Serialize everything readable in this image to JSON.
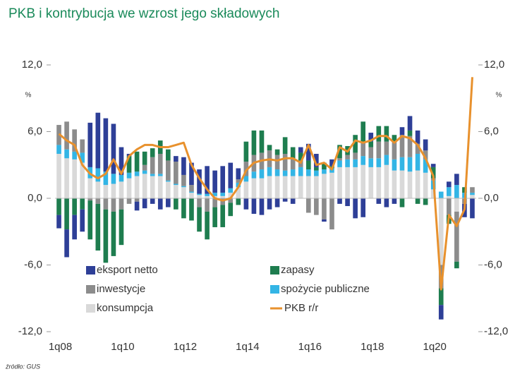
{
  "chart_data": {
    "type": "bar",
    "stacked": true,
    "title": "PKB i kontrybucja we wzrost jego składowych",
    "source": "źródło: GUS",
    "y_unit": "%",
    "categories": [
      "1q08",
      null,
      null,
      null,
      null,
      null,
      null,
      null,
      "1q10",
      null,
      null,
      null,
      null,
      null,
      null,
      null,
      "1q12",
      null,
      null,
      null,
      null,
      null,
      null,
      null,
      "1q14",
      null,
      null,
      null,
      null,
      null,
      null,
      null,
      "1q16",
      null,
      null,
      null,
      null,
      null,
      null,
      null,
      "1q18",
      null,
      null,
      null,
      null,
      null,
      null,
      null,
      "1q20",
      null,
      null,
      null,
      null,
      null
    ],
    "series": [
      {
        "name": "konsumpcja",
        "color": "#d9d9d9",
        "values": [
          4.0,
          3.6,
          3.5,
          3.2,
          1.8,
          1.5,
          1.2,
          1.3,
          1.5,
          1.8,
          2.0,
          2.2,
          2.0,
          2.0,
          1.5,
          1.2,
          1.0,
          0.5,
          0.3,
          0.2,
          0.2,
          0.2,
          0.5,
          1.0,
          1.5,
          1.8,
          1.8,
          2.0,
          2.0,
          2.0,
          2.0,
          2.0,
          2.0,
          2.0,
          2.2,
          2.3,
          2.8,
          2.8,
          2.8,
          3.0,
          2.8,
          2.8,
          3.0,
          2.5,
          2.5,
          2.4,
          2.5,
          2.3,
          0.8,
          -6.0,
          0.2,
          -1.2,
          0.0,
          0.3
        ]
      },
      {
        "name": "spożycie publiczne",
        "color": "#33b5e5",
        "values": [
          0.8,
          0.8,
          0.7,
          0.9,
          1.0,
          1.2,
          1.2,
          0.9,
          0.6,
          0.5,
          0.4,
          0.3,
          0.2,
          0.2,
          0.1,
          0.1,
          0.1,
          0.1,
          0.1,
          0.2,
          0.3,
          0.3,
          0.4,
          0.4,
          0.5,
          0.6,
          0.8,
          0.8,
          0.6,
          0.5,
          0.6,
          0.8,
          0.6,
          0.5,
          0.4,
          0.4,
          0.6,
          0.7,
          0.7,
          0.8,
          0.8,
          0.8,
          0.9,
          1.0,
          1.2,
          1.3,
          1.5,
          1.2,
          0.8,
          0.6,
          0.8,
          1.2,
          0.5,
          0.2
        ]
      },
      {
        "name": "inwestycje",
        "color": "#8c8c8c",
        "values": [
          1.8,
          2.5,
          2.0,
          1.2,
          -0.2,
          -0.5,
          -1.0,
          -1.2,
          -1.0,
          -0.5,
          -0.3,
          0.5,
          1.5,
          1.8,
          1.8,
          2.0,
          1.0,
          0.6,
          -0.8,
          -1.2,
          -0.8,
          -0.6,
          -0.4,
          0.3,
          1.3,
          1.5,
          1.5,
          1.5,
          1.3,
          1.5,
          1.0,
          0.6,
          -1.3,
          -1.5,
          -1.9,
          -2.8,
          0.2,
          0.4,
          0.6,
          1.3,
          1.0,
          1.5,
          1.2,
          1.6,
          2.0,
          1.9,
          0.9,
          0.8,
          0.2,
          -2.1,
          -1.5,
          -4.5,
          -0.5,
          0.5
        ]
      },
      {
        "name": "zapasy",
        "color": "#1e7d4f",
        "values": [
          -1.5,
          -2.8,
          -1.5,
          -1.0,
          -3.5,
          -4.2,
          -4.8,
          -4.0,
          -3.2,
          1.5,
          1.8,
          1.2,
          0.8,
          1.2,
          1.0,
          -1.0,
          -1.8,
          -2.0,
          -2.2,
          -2.5,
          -1.8,
          -2.0,
          -1.2,
          -0.6,
          1.8,
          2.2,
          2.0,
          0.5,
          0.5,
          1.5,
          1.0,
          0.7,
          0.8,
          0.3,
          0.6,
          0.2,
          1.2,
          0.8,
          1.6,
          1.8,
          0.5,
          1.4,
          1.4,
          0.6,
          -0.8,
          0.5,
          -0.5,
          -0.6,
          1.0,
          -1.5,
          -0.8,
          -0.6,
          0.5,
          0.0
        ]
      },
      {
        "name": "eksport netto",
        "color": "#2e3f97",
        "values": [
          -1.2,
          -2.5,
          -2.2,
          -2.0,
          4.0,
          5.0,
          4.8,
          4.5,
          2.5,
          0.2,
          -0.8,
          -0.9,
          -0.5,
          -1.0,
          -0.8,
          0.5,
          1.6,
          2.0,
          2.2,
          2.5,
          2.0,
          2.4,
          2.3,
          1.0,
          -1.0,
          -1.4,
          -1.5,
          -1.0,
          -0.8,
          -0.3,
          -0.5,
          0.5,
          1.5,
          1.2,
          -0.2,
          0.6,
          -0.5,
          -0.7,
          -1.8,
          -1.7,
          0.8,
          -0.5,
          -0.8,
          -0.5,
          0.7,
          1.3,
          1.2,
          1.0,
          0.3,
          -1.3,
          0.5,
          1.0,
          -1.2,
          -1.8
        ]
      }
    ],
    "line": {
      "name": "PKB r/r",
      "color": "#e8912d",
      "values": [
        5.8,
        5.2,
        4.8,
        3.0,
        2.2,
        1.8,
        2.2,
        3.5,
        2.2,
        3.8,
        4.4,
        4.8,
        4.8,
        4.6,
        4.6,
        4.8,
        5.0,
        3.0,
        1.8,
        0.8,
        0.0,
        -0.2,
        0.0,
        1.0,
        2.5,
        3.2,
        3.4,
        3.5,
        3.4,
        3.6,
        3.6,
        3.2,
        4.8,
        3.0,
        3.2,
        2.6,
        4.6,
        4.2,
        5.2,
        5.0,
        5.2,
        5.6,
        5.6,
        5.0,
        5.6,
        5.4,
        4.8,
        3.6,
        2.0,
        -8.2,
        -1.5,
        -2.5,
        -1.0,
        10.9
      ]
    },
    "ylim": [
      -12,
      12
    ],
    "yticks": [
      {
        "value": -12,
        "label": "-12,0"
      },
      {
        "value": -6,
        "label": "-6,0"
      },
      {
        "value": 0,
        "label": "0,0"
      },
      {
        "value": 6,
        "label": "6,0"
      },
      {
        "value": 12,
        "label": "12,0"
      }
    ],
    "y2lim": [
      -12,
      12
    ],
    "y2ticks": [
      {
        "value": -12,
        "label": "-12,0"
      },
      {
        "value": -6,
        "label": "-6,0"
      },
      {
        "value": 0,
        "label": "0,0"
      },
      {
        "value": 6,
        "label": "6,0"
      },
      {
        "value": 12,
        "label": "12,0"
      }
    ],
    "grid": false
  }
}
